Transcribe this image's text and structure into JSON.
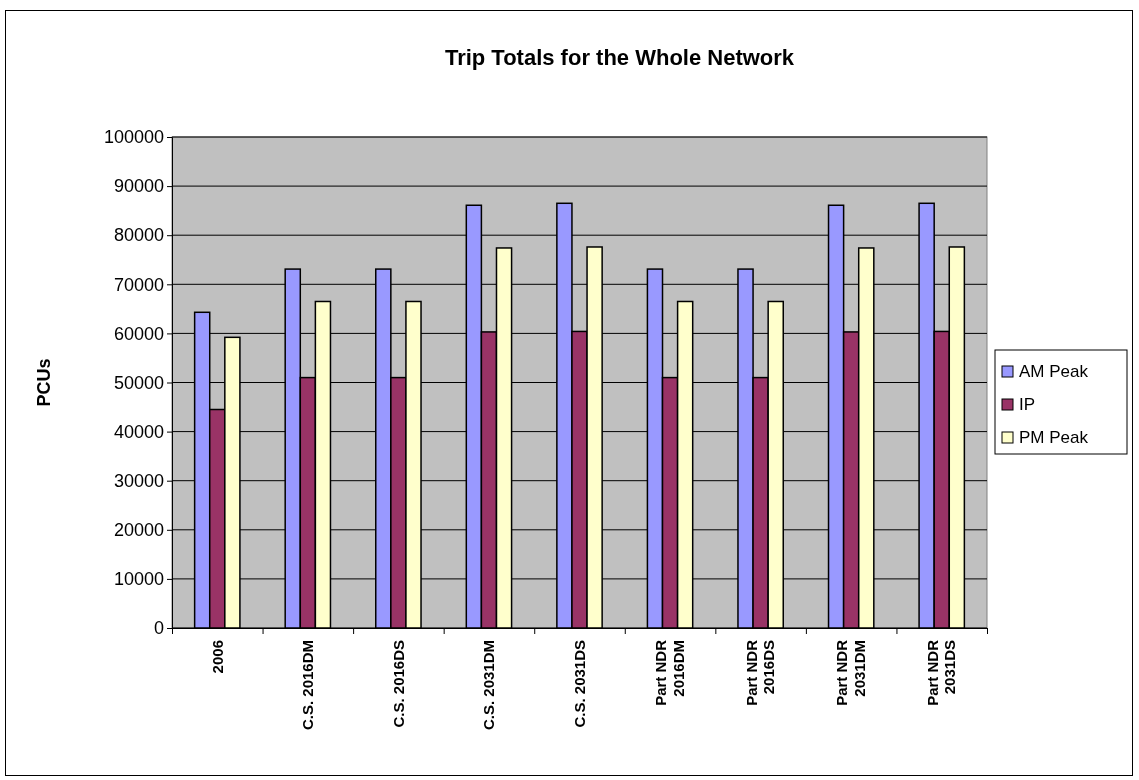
{
  "chart_data": {
    "type": "bar",
    "title": "Trip Totals for the Whole Network",
    "ylabel": "PCUs",
    "categories": [
      "2006",
      "C.S. 2016DM",
      "C.S. 2016DS",
      "C.S. 2031DM",
      "C.S. 2031DS",
      "Part NDR 2016DM",
      "Part NDR 2016DS",
      "Part NDR 2031DM",
      "Part NDR 2031DS"
    ],
    "series": [
      {
        "name": "AM Peak",
        "color": "#9999ff",
        "values": [
          64300,
          73100,
          73100,
          86100,
          86500,
          73100,
          73100,
          86100,
          86500
        ]
      },
      {
        "name": "IP",
        "color": "#993366",
        "values": [
          44500,
          51000,
          51000,
          60300,
          60400,
          51000,
          51000,
          60300,
          60400
        ]
      },
      {
        "name": "PM Peak",
        "color": "#ffffcc",
        "values": [
          59200,
          66500,
          66500,
          77400,
          77600,
          66500,
          66500,
          77400,
          77600
        ]
      }
    ],
    "ylim": [
      0,
      100000
    ],
    "yticks": [
      0,
      10000,
      20000,
      30000,
      40000,
      50000,
      60000,
      70000,
      80000,
      90000,
      100000
    ],
    "grid": "y",
    "legend": "right"
  }
}
